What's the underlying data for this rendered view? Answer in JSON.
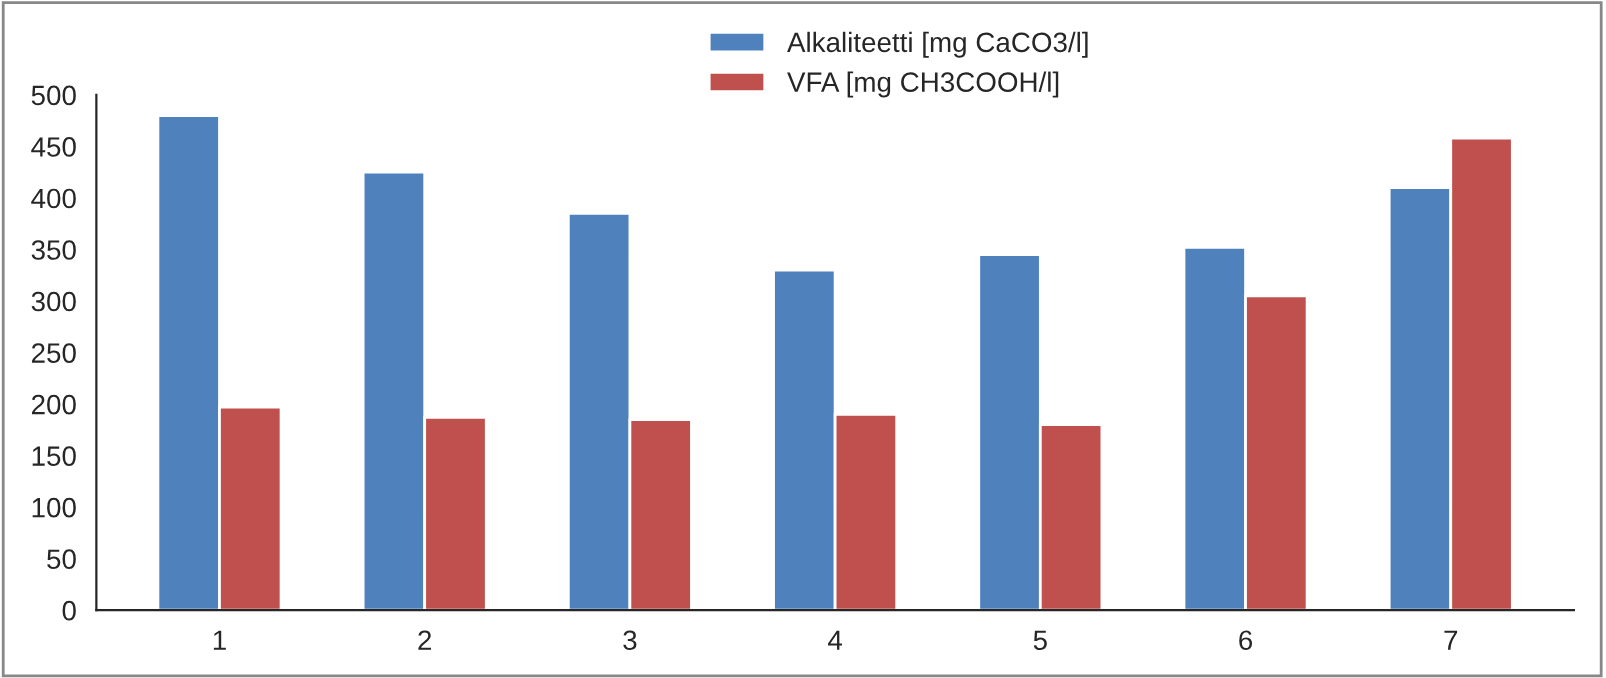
{
  "chart_data": {
    "type": "bar",
    "categories": [
      "1",
      "2",
      "3",
      "4",
      "5",
      "6",
      "7"
    ],
    "series": [
      {
        "name": "Alkaliteetti [mg CaCO3/l]",
        "color": "#4f81bd",
        "values": [
          480,
          425,
          385,
          330,
          345,
          352,
          410
        ]
      },
      {
        "name": "VFA [mg CH3COOH/l]",
        "color": "#c0504d",
        "values": [
          197,
          187,
          185,
          190,
          180,
          305,
          458
        ]
      }
    ],
    "ylim": [
      0,
      500
    ],
    "yticks": [
      0,
      50,
      100,
      150,
      200,
      250,
      300,
      350,
      400,
      450,
      500
    ],
    "grid": false,
    "legend": "top"
  }
}
